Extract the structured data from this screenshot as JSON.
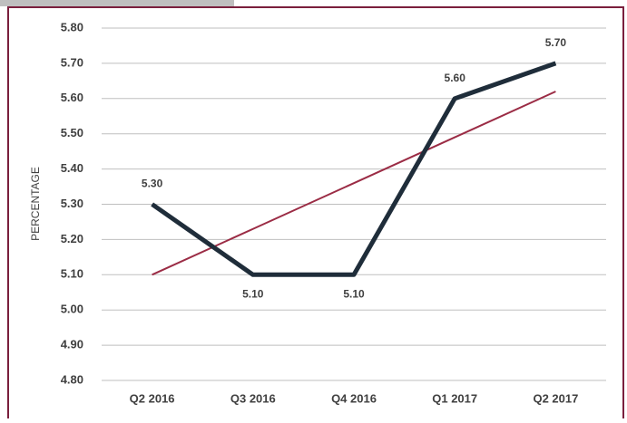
{
  "chart_data": {
    "type": "line",
    "y_label": "PERCENTAGE",
    "categories": [
      "Q2 2016",
      "Q3 2016",
      "Q4 2016",
      "Q1 2017",
      "Q2 2017"
    ],
    "series": [
      {
        "color": "#1f2d3a",
        "values": [
          5.3,
          5.1,
          5.1,
          5.6,
          5.7
        ],
        "value_labels": [
          "5.30",
          "5.10",
          "5.10",
          "5.60",
          "5.70"
        ]
      },
      {
        "color": "#9b2c45",
        "values": [
          5.1,
          5.23,
          5.36,
          5.49,
          5.62
        ]
      }
    ],
    "ylim": [
      4.8,
      5.8
    ],
    "yticks": [
      {
        "value": 4.8,
        "label": "4.80"
      },
      {
        "value": 4.9,
        "label": "4.90"
      },
      {
        "value": 5.0,
        "label": "5.00"
      },
      {
        "value": 5.1,
        "label": "5.10"
      },
      {
        "value": 5.2,
        "label": "5.20"
      },
      {
        "value": 5.3,
        "label": "5.30"
      },
      {
        "value": 5.4,
        "label": "5.40"
      },
      {
        "value": 5.5,
        "label": "5.50"
      },
      {
        "value": 5.6,
        "label": "5.60"
      },
      {
        "value": 5.7,
        "label": "5.70"
      },
      {
        "value": 5.8,
        "label": "5.80"
      }
    ],
    "grid": true
  }
}
